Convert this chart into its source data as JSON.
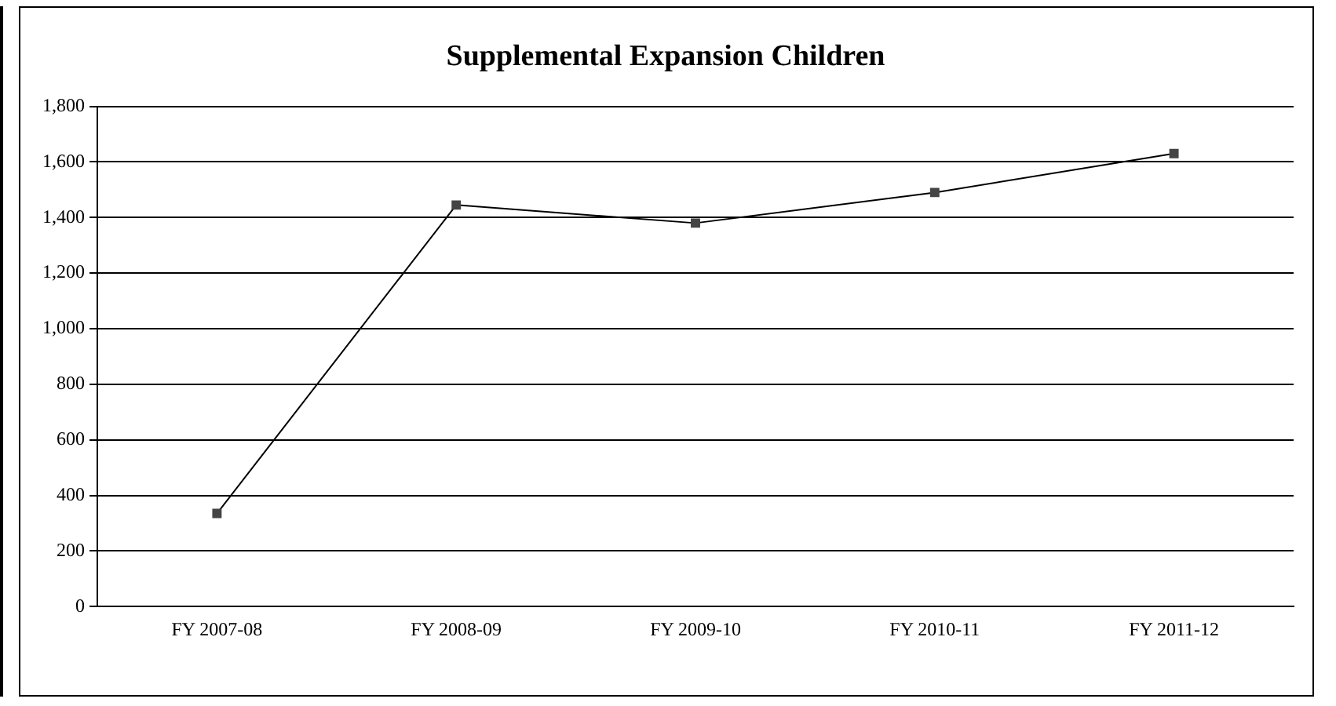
{
  "chart_data": {
    "type": "line",
    "title": "Supplemental Expansion Children",
    "categories": [
      "FY 2007-08",
      "FY 2008-09",
      "FY 2009-10",
      "FY 2010-11",
      "FY 2011-12"
    ],
    "series": [
      {
        "color": "#000000",
        "values": [
          335,
          1445,
          1380,
          1490,
          1630
        ]
      }
    ],
    "ylim": [
      0,
      1800
    ],
    "yticks": [
      0,
      200,
      400,
      600,
      800,
      {
        "value": 1000,
        "label": "1,000"
      },
      {
        "value": 1200,
        "label": "1,200"
      },
      {
        "value": 1400,
        "label": "1,400"
      },
      {
        "value": 1600,
        "label": "1,600"
      },
      {
        "value": 1800,
        "label": "1,800"
      }
    ],
    "grid": "y",
    "legend": false,
    "marker": "square",
    "line_style": "solid"
  }
}
